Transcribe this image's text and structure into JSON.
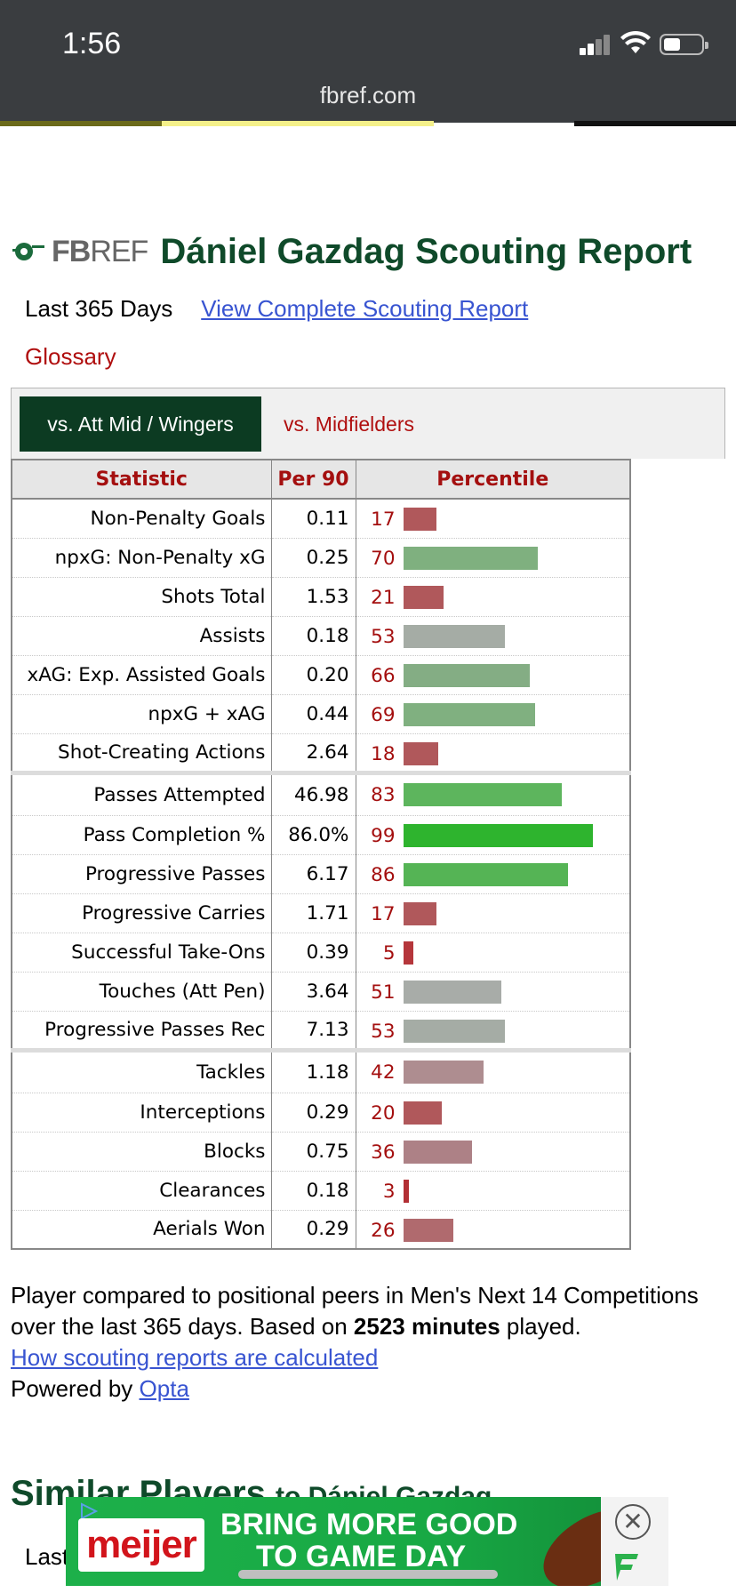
{
  "status_bar": {
    "time": "1:56",
    "url": "fbref.com"
  },
  "header": {
    "logo_fb": "FB",
    "logo_ref": "REF",
    "title": "Dániel Gazdag Scouting Report"
  },
  "subline": {
    "period": "Last 365 Days",
    "link": "View Complete Scouting Report",
    "glossary": "Glossary"
  },
  "comparison_tabs": {
    "active": "vs. Att Mid / Wingers",
    "other": "vs. Midfielders"
  },
  "table": {
    "headers": [
      "Statistic",
      "Per 90",
      "Percentile"
    ],
    "rows": [
      {
        "stat": "Non-Penalty Goals",
        "per90": "0.11",
        "percentile": 17,
        "color": "#b0585b"
      },
      {
        "stat": "npxG: Non-Penalty xG",
        "per90": "0.25",
        "percentile": 70,
        "color": "#7fb07f"
      },
      {
        "stat": "Shots Total",
        "per90": "1.53",
        "percentile": 21,
        "color": "#b0585b"
      },
      {
        "stat": "Assists",
        "per90": "0.18",
        "percentile": 53,
        "color": "#a5aca5"
      },
      {
        "stat": "xAG: Exp. Assisted Goals",
        "per90": "0.20",
        "percentile": 66,
        "color": "#84ad84"
      },
      {
        "stat": "npxG + xAG",
        "per90": "0.44",
        "percentile": 69,
        "color": "#80b080"
      },
      {
        "stat": "Shot-Creating Actions",
        "per90": "2.64",
        "percentile": 18,
        "color": "#b0585b"
      },
      {
        "stat": "Passes Attempted",
        "per90": "46.98",
        "percentile": 83,
        "color": "#5db55d"
      },
      {
        "stat": "Pass Completion %",
        "per90": "86.0%",
        "percentile": 99,
        "color": "#2eb42e"
      },
      {
        "stat": "Progressive Passes",
        "per90": "6.17",
        "percentile": 86,
        "color": "#55b455"
      },
      {
        "stat": "Progressive Carries",
        "per90": "1.71",
        "percentile": 17,
        "color": "#b0585b"
      },
      {
        "stat": "Successful Take-Ons",
        "per90": "0.39",
        "percentile": 5,
        "color": "#b5363b"
      },
      {
        "stat": "Touches (Att Pen)",
        "per90": "3.64",
        "percentile": 51,
        "color": "#a8aca8"
      },
      {
        "stat": "Progressive Passes Rec",
        "per90": "7.13",
        "percentile": 53,
        "color": "#a5aca5"
      },
      {
        "stat": "Tackles",
        "per90": "1.18",
        "percentile": 42,
        "color": "#ae8d90"
      },
      {
        "stat": "Interceptions",
        "per90": "0.29",
        "percentile": 20,
        "color": "#b0585b"
      },
      {
        "stat": "Blocks",
        "per90": "0.75",
        "percentile": 36,
        "color": "#ad8186"
      },
      {
        "stat": "Clearances",
        "per90": "0.18",
        "percentile": 3,
        "color": "#b22f34"
      },
      {
        "stat": "Aerials Won",
        "per90": "0.29",
        "percentile": 26,
        "color": "#b06a6e"
      }
    ],
    "group_starts": [
      7,
      14
    ]
  },
  "note": {
    "text1": "Player compared to positional peers in Men's Next 14 Competitions over the last 365 days. Based on ",
    "minutes": "2523 minutes",
    "text2": " played.",
    "calc_link": "How scouting reports are calculated",
    "powered_by": "Powered by ",
    "opta": "Opta"
  },
  "similar": {
    "title": "Similar Players",
    "to": "to Dániel Gazdag",
    "partial": "Last"
  },
  "ad": {
    "brand": "meijer",
    "line1": "BRING MORE GOOD",
    "line2": "TO GAME DAY",
    "close": "✕"
  }
}
